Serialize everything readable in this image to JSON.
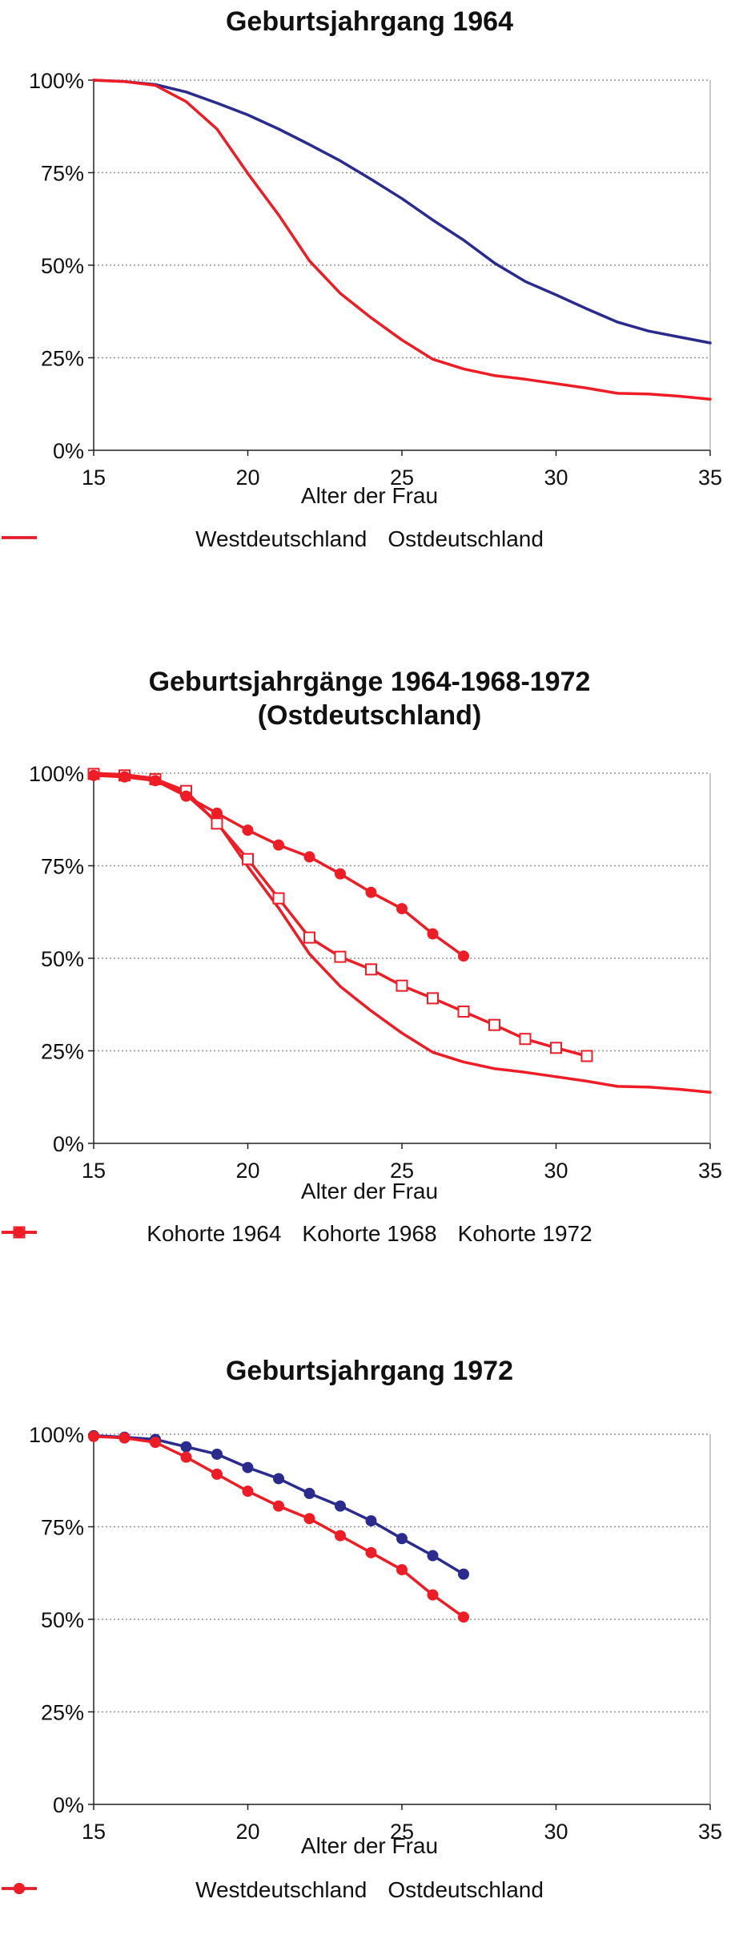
{
  "colors": {
    "west": "#2b2b8f",
    "ost": "#ee1c25",
    "grid": "#909090",
    "axis": "#222222"
  },
  "chart_data": [
    {
      "type": "line",
      "title": "Geburtsjahrgang 1964",
      "xlabel": "Alter der Frau",
      "ylabel": "",
      "xlim": [
        15,
        35
      ],
      "ylim": [
        0,
        100
      ],
      "x_ticks": [
        "15",
        "20",
        "25",
        "30",
        "35"
      ],
      "y_ticks": [
        "0%",
        "25%",
        "50%",
        "75%",
        "100%"
      ],
      "grid": "horizontal dotted",
      "legend_position": "bottom",
      "series": [
        {
          "name": "Westdeutschland",
          "color": "#2b2b8f",
          "markers": "none",
          "x": [
            15,
            16,
            17,
            18,
            19,
            20,
            21,
            22,
            23,
            24,
            25,
            26,
            27,
            28,
            29,
            30,
            31,
            32,
            33,
            34,
            35
          ],
          "values": [
            100,
            99.6,
            98.8,
            96.8,
            93.8,
            90.6,
            86.8,
            82.6,
            78.2,
            73.2,
            68,
            62.2,
            56.8,
            50.6,
            45.6,
            42,
            38.2,
            34.6,
            32.2,
            30.6,
            29
          ]
        },
        {
          "name": "Ostdeutschland",
          "color": "#ee1c25",
          "markers": "none",
          "x": [
            15,
            16,
            17,
            18,
            19,
            20,
            21,
            22,
            23,
            24,
            25,
            26,
            27,
            28,
            29,
            30,
            31,
            32,
            33,
            34,
            35
          ],
          "values": [
            100,
            99.6,
            98.6,
            94.2,
            86.8,
            74.8,
            63.6,
            51.2,
            42.4,
            35.8,
            29.8,
            24.6,
            22,
            20.2,
            19.2,
            18,
            16.8,
            15.4,
            15.2,
            14.6,
            13.8
          ]
        }
      ]
    },
    {
      "type": "line",
      "title": "Geburtsjahrgänge 1964-1968-1972 (Ostdeutschland)",
      "title_lines": [
        "Geburtsjahrgänge 1964-1968-1972",
        "(Ostdeutschland)"
      ],
      "xlabel": "Alter der Frau",
      "ylabel": "",
      "xlim": [
        15,
        35
      ],
      "ylim": [
        0,
        100
      ],
      "x_ticks": [
        "15",
        "20",
        "25",
        "30",
        "35"
      ],
      "y_ticks": [
        "0%",
        "25%",
        "50%",
        "75%",
        "100%"
      ],
      "grid": "horizontal dotted",
      "legend_position": "bottom",
      "series": [
        {
          "name": "Kohorte 1964",
          "color": "#ee1c25",
          "markers": "none",
          "x": [
            15,
            16,
            17,
            18,
            19,
            20,
            21,
            22,
            23,
            24,
            25,
            26,
            27,
            28,
            29,
            30,
            31,
            32,
            33,
            34,
            35
          ],
          "values": [
            100,
            99.6,
            98.6,
            94.2,
            86.8,
            74.8,
            63.6,
            51.2,
            42.4,
            35.8,
            29.8,
            24.6,
            22,
            20.2,
            19.2,
            18,
            16.8,
            15.4,
            15.2,
            14.6,
            13.8
          ]
        },
        {
          "name": "Kohorte 1968",
          "color": "#ee1c25",
          "markers": "open-square",
          "x": [
            15,
            16,
            17,
            18,
            19,
            20,
            21,
            22,
            23,
            24,
            25,
            26,
            27,
            28,
            29,
            30,
            31
          ],
          "values": [
            99.8,
            99.4,
            98.4,
            95.2,
            86.4,
            76.8,
            66.2,
            55.6,
            50.4,
            47,
            42.6,
            39.2,
            35.6,
            32,
            28.2,
            25.8,
            23.6
          ]
        },
        {
          "name": "Kohorte 1972",
          "color": "#ee1c25",
          "markers": "filled-circle",
          "x": [
            15,
            16,
            17,
            18,
            19,
            20,
            21,
            22,
            23,
            24,
            25,
            26,
            27
          ],
          "values": [
            99.4,
            99,
            98,
            93.8,
            89.2,
            84.6,
            80.6,
            77.4,
            72.8,
            67.8,
            63.4,
            56.6,
            50.6
          ]
        }
      ]
    },
    {
      "type": "line",
      "title": "Geburtsjahrgang 1972",
      "xlabel": "Alter der Frau",
      "ylabel": "",
      "xlim": [
        15,
        35
      ],
      "ylim": [
        0,
        100
      ],
      "x_ticks": [
        "15",
        "20",
        "25",
        "30",
        "35"
      ],
      "y_ticks": [
        "0%",
        "25%",
        "50%",
        "75%",
        "100%"
      ],
      "grid": "horizontal dotted",
      "legend_position": "bottom",
      "series": [
        {
          "name": "Westdeutschland",
          "color": "#2b2b8f",
          "markers": "filled-circle",
          "x": [
            15,
            16,
            17,
            18,
            19,
            20,
            21,
            22,
            23,
            24,
            25,
            26,
            27
          ],
          "values": [
            99.6,
            99.2,
            98.6,
            96.6,
            94.6,
            91,
            88,
            84,
            80.6,
            76.6,
            71.8,
            67.2,
            62.2
          ]
        },
        {
          "name": "Ostdeutschland",
          "color": "#ee1c25",
          "markers": "filled-circle",
          "x": [
            15,
            16,
            17,
            18,
            19,
            20,
            21,
            22,
            23,
            24,
            25,
            26,
            27
          ],
          "values": [
            99.4,
            99,
            97.8,
            93.8,
            89.2,
            84.6,
            80.6,
            77.2,
            72.6,
            68,
            63.4,
            56.6,
            50.6
          ]
        }
      ]
    }
  ]
}
